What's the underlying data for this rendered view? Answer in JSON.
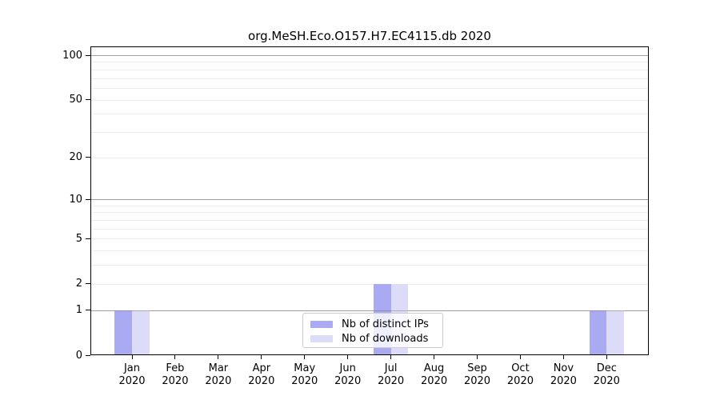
{
  "chart_data": {
    "type": "bar",
    "title": "org.MeSH.Eco.O157.H7.EC4115.db 2020",
    "y_scale": "log1p",
    "categories": [
      "Jan",
      "Feb",
      "Mar",
      "Apr",
      "May",
      "Jun",
      "Jul",
      "Aug",
      "Sep",
      "Oct",
      "Nov",
      "Dec"
    ],
    "category_year": "2020",
    "series": [
      {
        "name": "Nb of distinct IPs",
        "color": "#aaaaf2",
        "values": [
          1,
          0,
          0,
          0,
          0,
          0,
          2,
          0,
          0,
          0,
          0,
          1
        ]
      },
      {
        "name": "Nb of downloads",
        "color": "#dcdcf8",
        "values": [
          1,
          0,
          0,
          0,
          0,
          0,
          2,
          0,
          0,
          0,
          0,
          1
        ]
      }
    ],
    "y_ticks": [
      100,
      50,
      20,
      10,
      5,
      2,
      1,
      0
    ],
    "minor_gridlines": [
      2,
      3,
      4,
      5,
      6,
      7,
      8,
      9,
      20,
      30,
      40,
      50,
      60,
      70,
      80,
      90
    ],
    "major_gridlines": [
      1,
      10,
      100
    ],
    "ylim": [
      0,
      115
    ],
    "xlabel": "",
    "ylabel": "",
    "grid": true,
    "legend_position": "lower center"
  },
  "colors": {
    "background": "#ffffff",
    "axis": "#000000",
    "minor_grid": "#ededed",
    "major_grid": "#c6c6c6",
    "major_grid_over_bars": "rgba(110,110,110,0.45)",
    "legend_border": "#cccccc",
    "text": "#000000"
  }
}
